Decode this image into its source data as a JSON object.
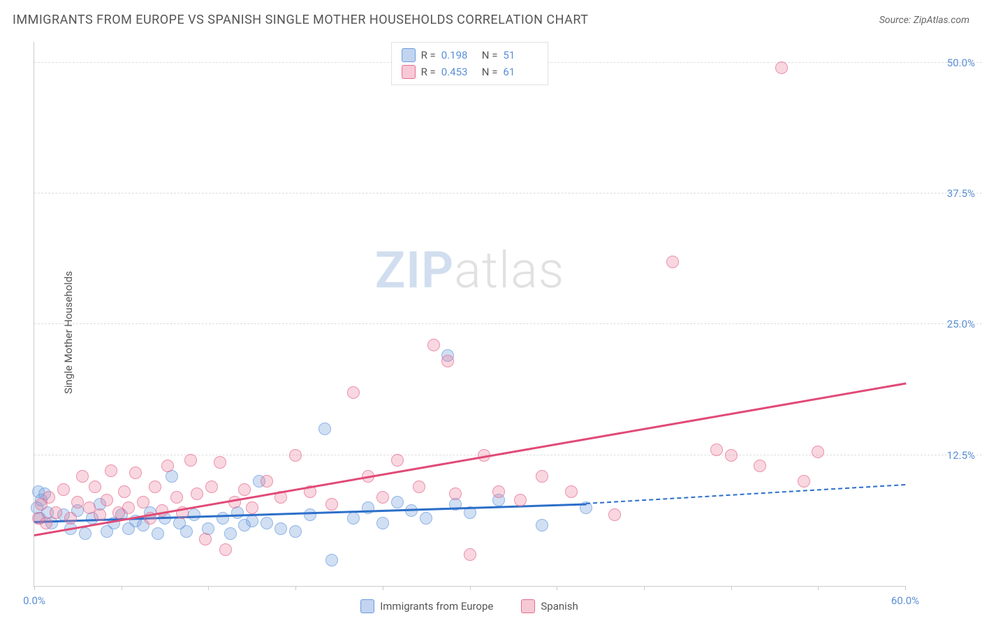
{
  "title": "IMMIGRANTS FROM EUROPE VS SPANISH SINGLE MOTHER HOUSEHOLDS CORRELATION CHART",
  "source_prefix": "Source: ",
  "source": "ZipAtlas.com",
  "y_axis_label": "Single Mother Households",
  "watermark": {
    "zip": "ZIP",
    "atlas": "atlas"
  },
  "chart": {
    "type": "scatter",
    "xlim": [
      0,
      60
    ],
    "ylim": [
      0,
      52
    ],
    "y_ticks": [
      12.5,
      25.0,
      37.5,
      50.0
    ],
    "y_tick_labels": [
      "12.5%",
      "25.0%",
      "37.5%",
      "50.0%"
    ],
    "x_ticks": [
      0,
      6,
      12,
      18,
      24,
      30,
      36,
      42,
      48,
      54,
      60
    ],
    "x_tick_labels": {
      "0": "0.0%",
      "60": "60.0%"
    },
    "point_radius": 9,
    "background_color": "#ffffff",
    "grid_color": "#dddddd",
    "axis_color": "#cccccc",
    "tick_label_color": "#5a8fd6",
    "series": [
      {
        "name": "Immigrants from Europe",
        "color_fill": "rgba(120,160,220,0.45)",
        "color_stroke": "#6a9de0",
        "line_color": "#2c6fc9",
        "R": "0.198",
        "N": "51",
        "trend": {
          "x1": 0,
          "y1": 6.3,
          "x2": 38,
          "y2": 8.0,
          "dashed_to_x": 60,
          "dashed_to_y": 9.8
        },
        "points": [
          [
            0.2,
            7.5
          ],
          [
            0.3,
            9.0
          ],
          [
            0.4,
            6.5
          ],
          [
            0.5,
            8.2
          ],
          [
            0.7,
            8.8
          ],
          [
            0.9,
            7.0
          ],
          [
            1.2,
            6.0
          ],
          [
            2.0,
            6.8
          ],
          [
            2.5,
            5.5
          ],
          [
            3.0,
            7.2
          ],
          [
            3.5,
            5.0
          ],
          [
            4.0,
            6.5
          ],
          [
            4.5,
            7.8
          ],
          [
            5.0,
            5.2
          ],
          [
            5.5,
            6.0
          ],
          [
            6.0,
            6.8
          ],
          [
            6.5,
            5.5
          ],
          [
            7.0,
            6.2
          ],
          [
            7.5,
            5.8
          ],
          [
            8.0,
            7.0
          ],
          [
            8.5,
            5.0
          ],
          [
            9.0,
            6.5
          ],
          [
            9.5,
            10.5
          ],
          [
            10.0,
            6.0
          ],
          [
            10.5,
            5.2
          ],
          [
            11.0,
            6.8
          ],
          [
            12.0,
            5.5
          ],
          [
            13.0,
            6.5
          ],
          [
            13.5,
            5.0
          ],
          [
            14.0,
            7.0
          ],
          [
            14.5,
            5.8
          ],
          [
            15.0,
            6.2
          ],
          [
            15.5,
            10.0
          ],
          [
            16.0,
            6.0
          ],
          [
            17.0,
            5.5
          ],
          [
            18.0,
            5.2
          ],
          [
            19.0,
            6.8
          ],
          [
            20.0,
            15.0
          ],
          [
            20.5,
            2.5
          ],
          [
            22.0,
            6.5
          ],
          [
            23.0,
            7.5
          ],
          [
            24.0,
            6.0
          ],
          [
            25.0,
            8.0
          ],
          [
            26.0,
            7.2
          ],
          [
            27.0,
            6.5
          ],
          [
            28.5,
            22.0
          ],
          [
            29.0,
            7.8
          ],
          [
            30.0,
            7.0
          ],
          [
            32.0,
            8.2
          ],
          [
            35.0,
            5.8
          ],
          [
            38.0,
            7.5
          ]
        ]
      },
      {
        "name": "Spanish",
        "color_fill": "rgba(235,120,150,0.40)",
        "color_stroke": "#e66b8f",
        "line_color": "#e14a77",
        "R": "0.453",
        "N": "61",
        "trend": {
          "x1": 0,
          "y1": 5.0,
          "x2": 60,
          "y2": 19.5
        },
        "points": [
          [
            0.3,
            6.5
          ],
          [
            0.5,
            7.8
          ],
          [
            0.8,
            6.0
          ],
          [
            1.0,
            8.5
          ],
          [
            1.5,
            7.0
          ],
          [
            2.0,
            9.2
          ],
          [
            2.5,
            6.5
          ],
          [
            3.0,
            8.0
          ],
          [
            3.3,
            10.5
          ],
          [
            3.8,
            7.5
          ],
          [
            4.2,
            9.5
          ],
          [
            4.5,
            6.8
          ],
          [
            5.0,
            8.2
          ],
          [
            5.3,
            11.0
          ],
          [
            5.8,
            7.0
          ],
          [
            6.2,
            9.0
          ],
          [
            6.5,
            7.5
          ],
          [
            7.0,
            10.8
          ],
          [
            7.5,
            8.0
          ],
          [
            8.0,
            6.5
          ],
          [
            8.3,
            9.5
          ],
          [
            8.8,
            7.2
          ],
          [
            9.2,
            11.5
          ],
          [
            9.8,
            8.5
          ],
          [
            10.2,
            7.0
          ],
          [
            10.8,
            12.0
          ],
          [
            11.2,
            8.8
          ],
          [
            11.8,
            4.5
          ],
          [
            12.2,
            9.5
          ],
          [
            12.8,
            11.8
          ],
          [
            13.2,
            3.5
          ],
          [
            13.8,
            8.0
          ],
          [
            14.5,
            9.2
          ],
          [
            15.0,
            7.5
          ],
          [
            16.0,
            10.0
          ],
          [
            17.0,
            8.5
          ],
          [
            18.0,
            12.5
          ],
          [
            19.0,
            9.0
          ],
          [
            20.5,
            7.8
          ],
          [
            22.0,
            18.5
          ],
          [
            23.0,
            10.5
          ],
          [
            24.0,
            8.5
          ],
          [
            25.0,
            12.0
          ],
          [
            26.5,
            9.5
          ],
          [
            27.5,
            23.0
          ],
          [
            28.5,
            21.5
          ],
          [
            29.0,
            8.8
          ],
          [
            30.0,
            3.0
          ],
          [
            31.0,
            12.5
          ],
          [
            32.0,
            9.0
          ],
          [
            33.5,
            8.2
          ],
          [
            35.0,
            10.5
          ],
          [
            37.0,
            9.0
          ],
          [
            40.0,
            6.8
          ],
          [
            44.0,
            31.0
          ],
          [
            47.0,
            13.0
          ],
          [
            48.0,
            12.5
          ],
          [
            50.0,
            11.5
          ],
          [
            51.5,
            49.5
          ],
          [
            53.0,
            10.0
          ],
          [
            54.0,
            12.8
          ]
        ]
      }
    ]
  },
  "legend_top": {
    "r_label": "R  =",
    "n_label": "N  ="
  },
  "bottom_legend": [
    {
      "label": "Immigrants from Europe",
      "series_index": 0
    },
    {
      "label": "Spanish",
      "series_index": 1
    }
  ]
}
